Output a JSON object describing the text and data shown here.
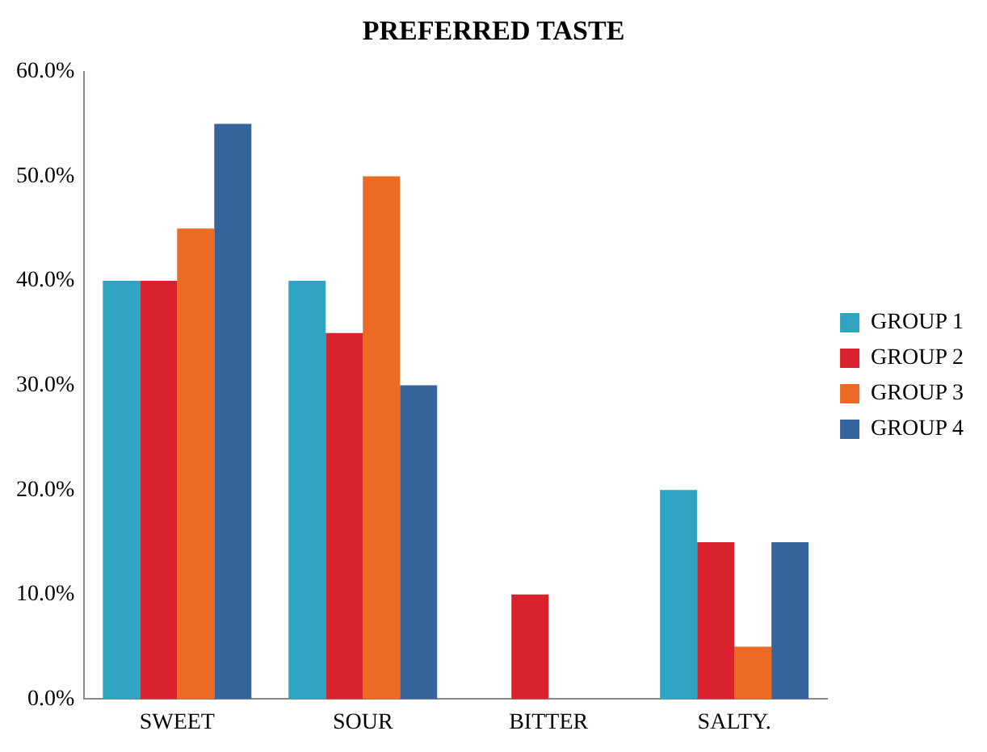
{
  "chart_data": {
    "type": "bar",
    "title": "PREFERRED TASTE",
    "categories": [
      "SWEET",
      "SOUR",
      "BITTER",
      "SALTY."
    ],
    "series": [
      {
        "name": "GROUP 1",
        "color": "#2fa4c1",
        "values": [
          40,
          40,
          0,
          20
        ]
      },
      {
        "name": "GROUP 2",
        "color": "#d9222d",
        "values": [
          40,
          35,
          10,
          15
        ]
      },
      {
        "name": "GROUP 3",
        "color": "#ec6a23",
        "values": [
          45,
          50,
          0,
          5
        ]
      },
      {
        "name": "GROUP 4",
        "color": "#36659e",
        "values": [
          55,
          30,
          0,
          15
        ]
      }
    ],
    "ylim": [
      0,
      60
    ],
    "yticks": [
      {
        "value": 0,
        "label": "0.0%"
      },
      {
        "value": 10,
        "label": "10.0%"
      },
      {
        "value": 20,
        "label": "20.0%"
      },
      {
        "value": 30,
        "label": "30.0%"
      },
      {
        "value": 40,
        "label": "40.0%"
      },
      {
        "value": 50,
        "label": "50.0%"
      },
      {
        "value": 60,
        "label": "60.0%"
      }
    ],
    "grid": false,
    "legend": "right"
  }
}
